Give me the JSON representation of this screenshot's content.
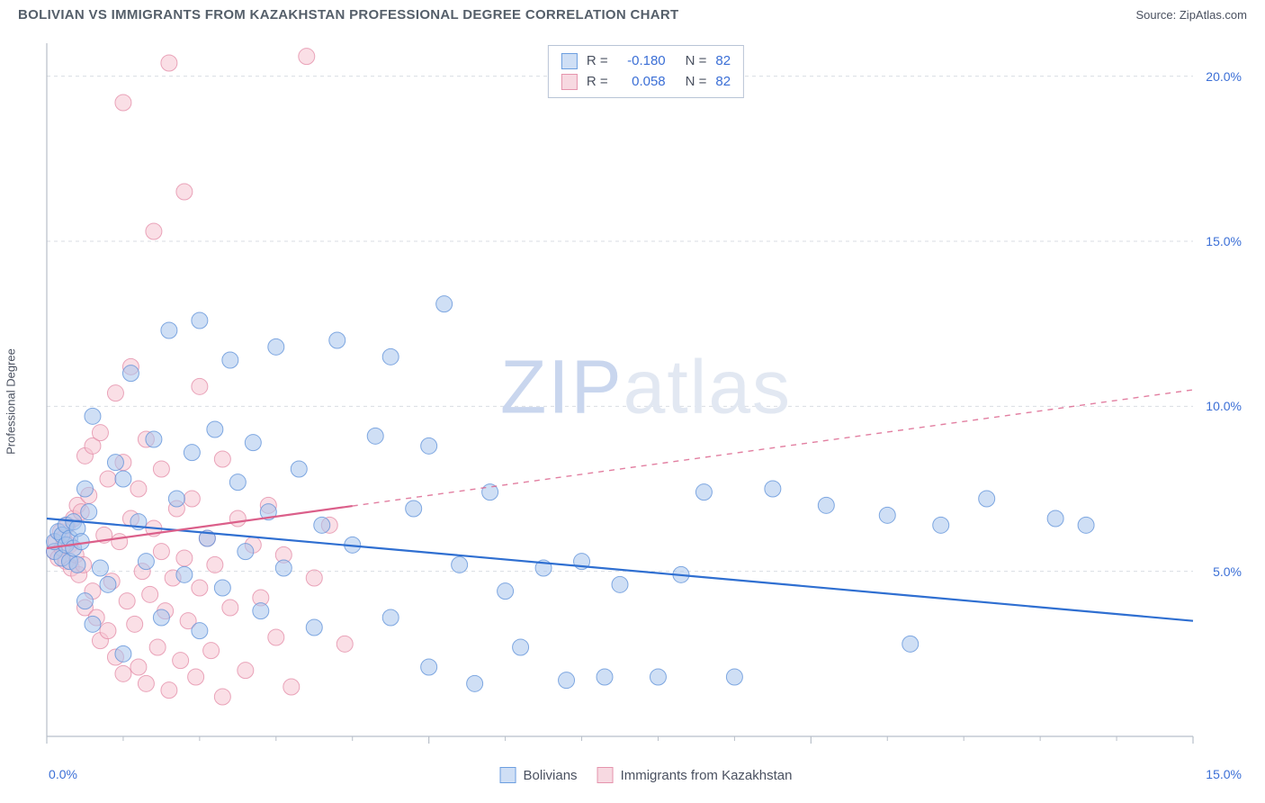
{
  "header": {
    "title": "BOLIVIAN VS IMMIGRANTS FROM KAZAKHSTAN PROFESSIONAL DEGREE CORRELATION CHART",
    "source_label": "Source: ",
    "source_name": "ZipAtlas.com"
  },
  "chart": {
    "type": "scatter",
    "ylabel": "Professional Degree",
    "background_color": "#ffffff",
    "grid_color": "#d9dde3",
    "axis_line_color": "#b8bfc9",
    "xlim": [
      0,
      15
    ],
    "ylim": [
      0,
      21
    ],
    "xticks": [
      0,
      5,
      10,
      15
    ],
    "xtick_labels": [
      "0.0%",
      "",
      "",
      "15.0%"
    ],
    "yticks": [
      5,
      10,
      15,
      20
    ],
    "ytick_labels": [
      "5.0%",
      "10.0%",
      "15.0%",
      "20.0%"
    ],
    "minor_xticks": [
      1,
      2,
      3,
      4,
      6,
      7,
      8,
      9,
      11,
      12,
      13,
      14
    ],
    "marker_radius": 9,
    "marker_opacity": 0.55,
    "line_width": 2.2,
    "series": [
      {
        "key": "bolivians",
        "label": "Bolivians",
        "color_fill": "#a8c4ec",
        "color_stroke": "#5b8fd8",
        "swatch_bg": "#cfdff5",
        "swatch_border": "#6c9ee0",
        "stats": {
          "R_label": "R =",
          "R": "-0.180",
          "N_label": "N =",
          "N": "82"
        },
        "trend": {
          "x1": 0,
          "y1": 6.6,
          "x2": 15,
          "y2": 3.5,
          "solid_until_x": 15,
          "color": "#2f6fd1"
        },
        "points": [
          [
            0.1,
            5.6
          ],
          [
            0.1,
            5.9
          ],
          [
            0.15,
            6.2
          ],
          [
            0.2,
            5.4
          ],
          [
            0.2,
            6.1
          ],
          [
            0.25,
            5.8
          ],
          [
            0.25,
            6.4
          ],
          [
            0.3,
            5.3
          ],
          [
            0.3,
            6.0
          ],
          [
            0.35,
            5.7
          ],
          [
            0.35,
            6.5
          ],
          [
            0.4,
            5.2
          ],
          [
            0.4,
            6.3
          ],
          [
            0.45,
            5.9
          ],
          [
            0.5,
            4.1
          ],
          [
            0.5,
            7.5
          ],
          [
            0.55,
            6.8
          ],
          [
            0.6,
            9.7
          ],
          [
            0.6,
            3.4
          ],
          [
            0.7,
            5.1
          ],
          [
            0.8,
            4.6
          ],
          [
            0.9,
            8.3
          ],
          [
            1.0,
            7.8
          ],
          [
            1.0,
            2.5
          ],
          [
            1.1,
            11.0
          ],
          [
            1.2,
            6.5
          ],
          [
            1.3,
            5.3
          ],
          [
            1.4,
            9.0
          ],
          [
            1.5,
            3.6
          ],
          [
            1.6,
            12.3
          ],
          [
            1.7,
            7.2
          ],
          [
            1.8,
            4.9
          ],
          [
            1.9,
            8.6
          ],
          [
            2.0,
            12.6
          ],
          [
            2.0,
            3.2
          ],
          [
            2.1,
            6.0
          ],
          [
            2.2,
            9.3
          ],
          [
            2.3,
            4.5
          ],
          [
            2.4,
            11.4
          ],
          [
            2.5,
            7.7
          ],
          [
            2.6,
            5.6
          ],
          [
            2.7,
            8.9
          ],
          [
            2.8,
            3.8
          ],
          [
            2.9,
            6.8
          ],
          [
            3.0,
            11.8
          ],
          [
            3.1,
            5.1
          ],
          [
            3.3,
            8.1
          ],
          [
            3.5,
            3.3
          ],
          [
            3.6,
            6.4
          ],
          [
            3.8,
            12.0
          ],
          [
            4.0,
            5.8
          ],
          [
            4.3,
            9.1
          ],
          [
            4.5,
            11.5
          ],
          [
            4.5,
            3.6
          ],
          [
            4.8,
            6.9
          ],
          [
            5.0,
            2.1
          ],
          [
            5.0,
            8.8
          ],
          [
            5.2,
            13.1
          ],
          [
            5.4,
            5.2
          ],
          [
            5.6,
            1.6
          ],
          [
            5.8,
            7.4
          ],
          [
            6.0,
            4.4
          ],
          [
            6.2,
            2.7
          ],
          [
            6.5,
            5.1
          ],
          [
            6.8,
            1.7
          ],
          [
            7.0,
            5.3
          ],
          [
            7.3,
            1.8
          ],
          [
            7.5,
            4.6
          ],
          [
            8.0,
            1.8
          ],
          [
            8.3,
            4.9
          ],
          [
            8.6,
            7.4
          ],
          [
            9.0,
            1.8
          ],
          [
            9.5,
            7.5
          ],
          [
            10.2,
            7.0
          ],
          [
            11.0,
            6.7
          ],
          [
            11.3,
            2.8
          ],
          [
            11.7,
            6.4
          ],
          [
            12.3,
            7.2
          ],
          [
            13.2,
            6.6
          ],
          [
            13.6,
            6.4
          ]
        ]
      },
      {
        "key": "kazakhstan",
        "label": "Immigants from Kazakhstan",
        "label_display": "Immigrants from Kazakhstan",
        "color_fill": "#f5c5d2",
        "color_stroke": "#e38aa6",
        "swatch_bg": "#f7d9e1",
        "swatch_border": "#e594ad",
        "stats": {
          "R_label": "R =",
          "R": "0.058",
          "N_label": "N =",
          "N": "82"
        },
        "trend": {
          "x1": 0,
          "y1": 5.7,
          "x2": 15,
          "y2": 10.5,
          "solid_until_x": 4.0,
          "color": "#db5f8a"
        },
        "points": [
          [
            0.1,
            5.6
          ],
          [
            0.12,
            5.9
          ],
          [
            0.15,
            5.4
          ],
          [
            0.18,
            6.2
          ],
          [
            0.2,
            5.7
          ],
          [
            0.22,
            6.0
          ],
          [
            0.25,
            5.3
          ],
          [
            0.27,
            6.4
          ],
          [
            0.3,
            5.8
          ],
          [
            0.32,
            5.1
          ],
          [
            0.35,
            6.6
          ],
          [
            0.38,
            5.5
          ],
          [
            0.4,
            7.0
          ],
          [
            0.42,
            4.9
          ],
          [
            0.45,
            6.8
          ],
          [
            0.48,
            5.2
          ],
          [
            0.5,
            8.5
          ],
          [
            0.5,
            3.9
          ],
          [
            0.55,
            7.3
          ],
          [
            0.6,
            4.4
          ],
          [
            0.6,
            8.8
          ],
          [
            0.65,
            3.6
          ],
          [
            0.7,
            9.2
          ],
          [
            0.7,
            2.9
          ],
          [
            0.75,
            6.1
          ],
          [
            0.8,
            7.8
          ],
          [
            0.8,
            3.2
          ],
          [
            0.85,
            4.7
          ],
          [
            0.9,
            10.4
          ],
          [
            0.9,
            2.4
          ],
          [
            0.95,
            5.9
          ],
          [
            1.0,
            19.2
          ],
          [
            1.0,
            8.3
          ],
          [
            1.0,
            1.9
          ],
          [
            1.05,
            4.1
          ],
          [
            1.1,
            6.6
          ],
          [
            1.1,
            11.2
          ],
          [
            1.15,
            3.4
          ],
          [
            1.2,
            7.5
          ],
          [
            1.2,
            2.1
          ],
          [
            1.25,
            5.0
          ],
          [
            1.3,
            9.0
          ],
          [
            1.3,
            1.6
          ],
          [
            1.35,
            4.3
          ],
          [
            1.4,
            6.3
          ],
          [
            1.4,
            15.3
          ],
          [
            1.45,
            2.7
          ],
          [
            1.5,
            5.6
          ],
          [
            1.5,
            8.1
          ],
          [
            1.55,
            3.8
          ],
          [
            1.6,
            20.4
          ],
          [
            1.6,
            1.4
          ],
          [
            1.65,
            4.8
          ],
          [
            1.7,
            6.9
          ],
          [
            1.75,
            2.3
          ],
          [
            1.8,
            5.4
          ],
          [
            1.8,
            16.5
          ],
          [
            1.85,
            3.5
          ],
          [
            1.9,
            7.2
          ],
          [
            1.95,
            1.8
          ],
          [
            2.0,
            10.6
          ],
          [
            2.0,
            4.5
          ],
          [
            2.1,
            6.0
          ],
          [
            2.15,
            2.6
          ],
          [
            2.2,
            5.2
          ],
          [
            2.3,
            8.4
          ],
          [
            2.3,
            1.2
          ],
          [
            2.4,
            3.9
          ],
          [
            2.5,
            6.6
          ],
          [
            2.6,
            2.0
          ],
          [
            2.7,
            5.8
          ],
          [
            2.8,
            4.2
          ],
          [
            2.9,
            7.0
          ],
          [
            3.0,
            3.0
          ],
          [
            3.1,
            5.5
          ],
          [
            3.2,
            1.5
          ],
          [
            3.4,
            20.6
          ],
          [
            3.5,
            4.8
          ],
          [
            3.7,
            6.4
          ],
          [
            3.9,
            2.8
          ]
        ]
      }
    ]
  },
  "watermark": {
    "part1": "ZIP",
    "part2": "atlas"
  }
}
